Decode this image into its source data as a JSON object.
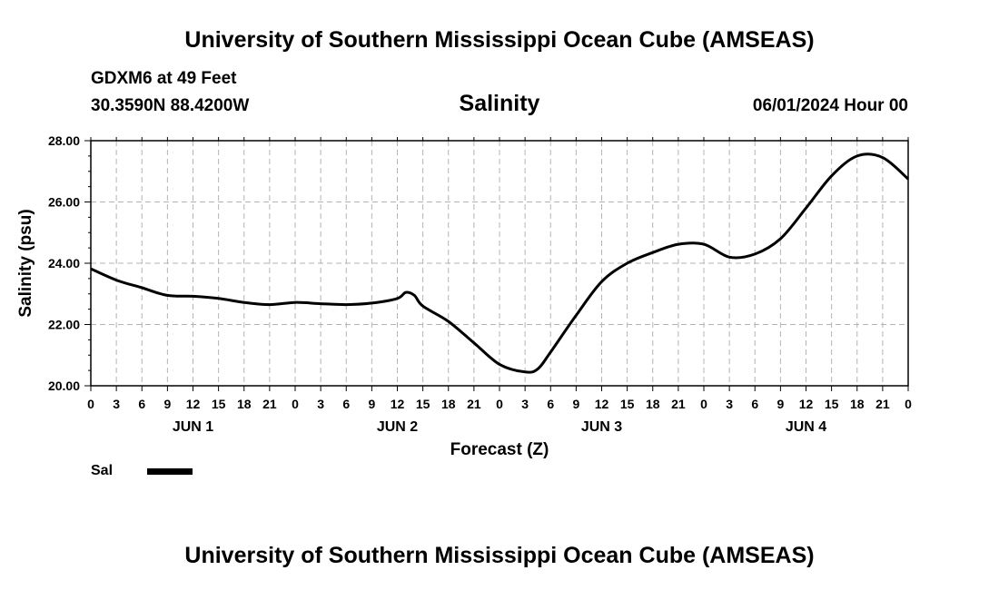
{
  "header": {
    "title": "University of Southern Mississippi Ocean Cube (AMSEAS)",
    "station": "GDXM6 at 49 Feet",
    "coords": "30.3590N  88.4200W",
    "subtitle": "Salinity",
    "datetime": "06/01/2024 Hour 00"
  },
  "footer": {
    "title": "University of Southern Mississippi Ocean Cube (AMSEAS)"
  },
  "legend": {
    "label": "Sal",
    "color": "#000000"
  },
  "chart_data": {
    "type": "line",
    "title": "Salinity",
    "xlabel": "Forecast (Z)",
    "ylabel": "Salinity (psu)",
    "xlim": [
      0,
      96
    ],
    "ylim": [
      20,
      28
    ],
    "grid": true,
    "x_tick_labels": [
      "0",
      "3",
      "6",
      "9",
      "12",
      "15",
      "18",
      "21",
      "0",
      "3",
      "6",
      "9",
      "12",
      "15",
      "18",
      "21",
      "0",
      "3",
      "6",
      "9",
      "12",
      "15",
      "18",
      "21",
      "0",
      "3",
      "6",
      "9",
      "12",
      "15",
      "18",
      "21",
      "0"
    ],
    "y_ticks": [
      20,
      22,
      24,
      26,
      28
    ],
    "y_tick_labels": [
      "20.00",
      "22.00",
      "24.00",
      "26.00",
      "28.00"
    ],
    "day_labels": [
      {
        "label": "JUN 1",
        "hour": 12
      },
      {
        "label": "JUN 2",
        "hour": 36
      },
      {
        "label": "JUN 3",
        "hour": 60
      },
      {
        "label": "JUN 4",
        "hour": 84
      }
    ],
    "series": [
      {
        "name": "Sal",
        "color": "#000000",
        "x": [
          0,
          3,
          6,
          9,
          12,
          15,
          18,
          21,
          24,
          27,
          30,
          33,
          36,
          37,
          38,
          39,
          42,
          45,
          48,
          51,
          52.5,
          54,
          57,
          60,
          63,
          66,
          69,
          72,
          75,
          78,
          81,
          84,
          87,
          90,
          93,
          96
        ],
        "y": [
          23.82,
          23.45,
          23.2,
          22.95,
          22.92,
          22.85,
          22.72,
          22.65,
          22.72,
          22.68,
          22.65,
          22.7,
          22.85,
          23.05,
          22.95,
          22.6,
          22.1,
          21.4,
          20.7,
          20.45,
          20.55,
          21.1,
          22.3,
          23.4,
          24.0,
          24.35,
          24.62,
          24.62,
          24.2,
          24.3,
          24.8,
          25.8,
          26.85,
          27.5,
          27.45,
          26.75
        ]
      }
    ]
  }
}
